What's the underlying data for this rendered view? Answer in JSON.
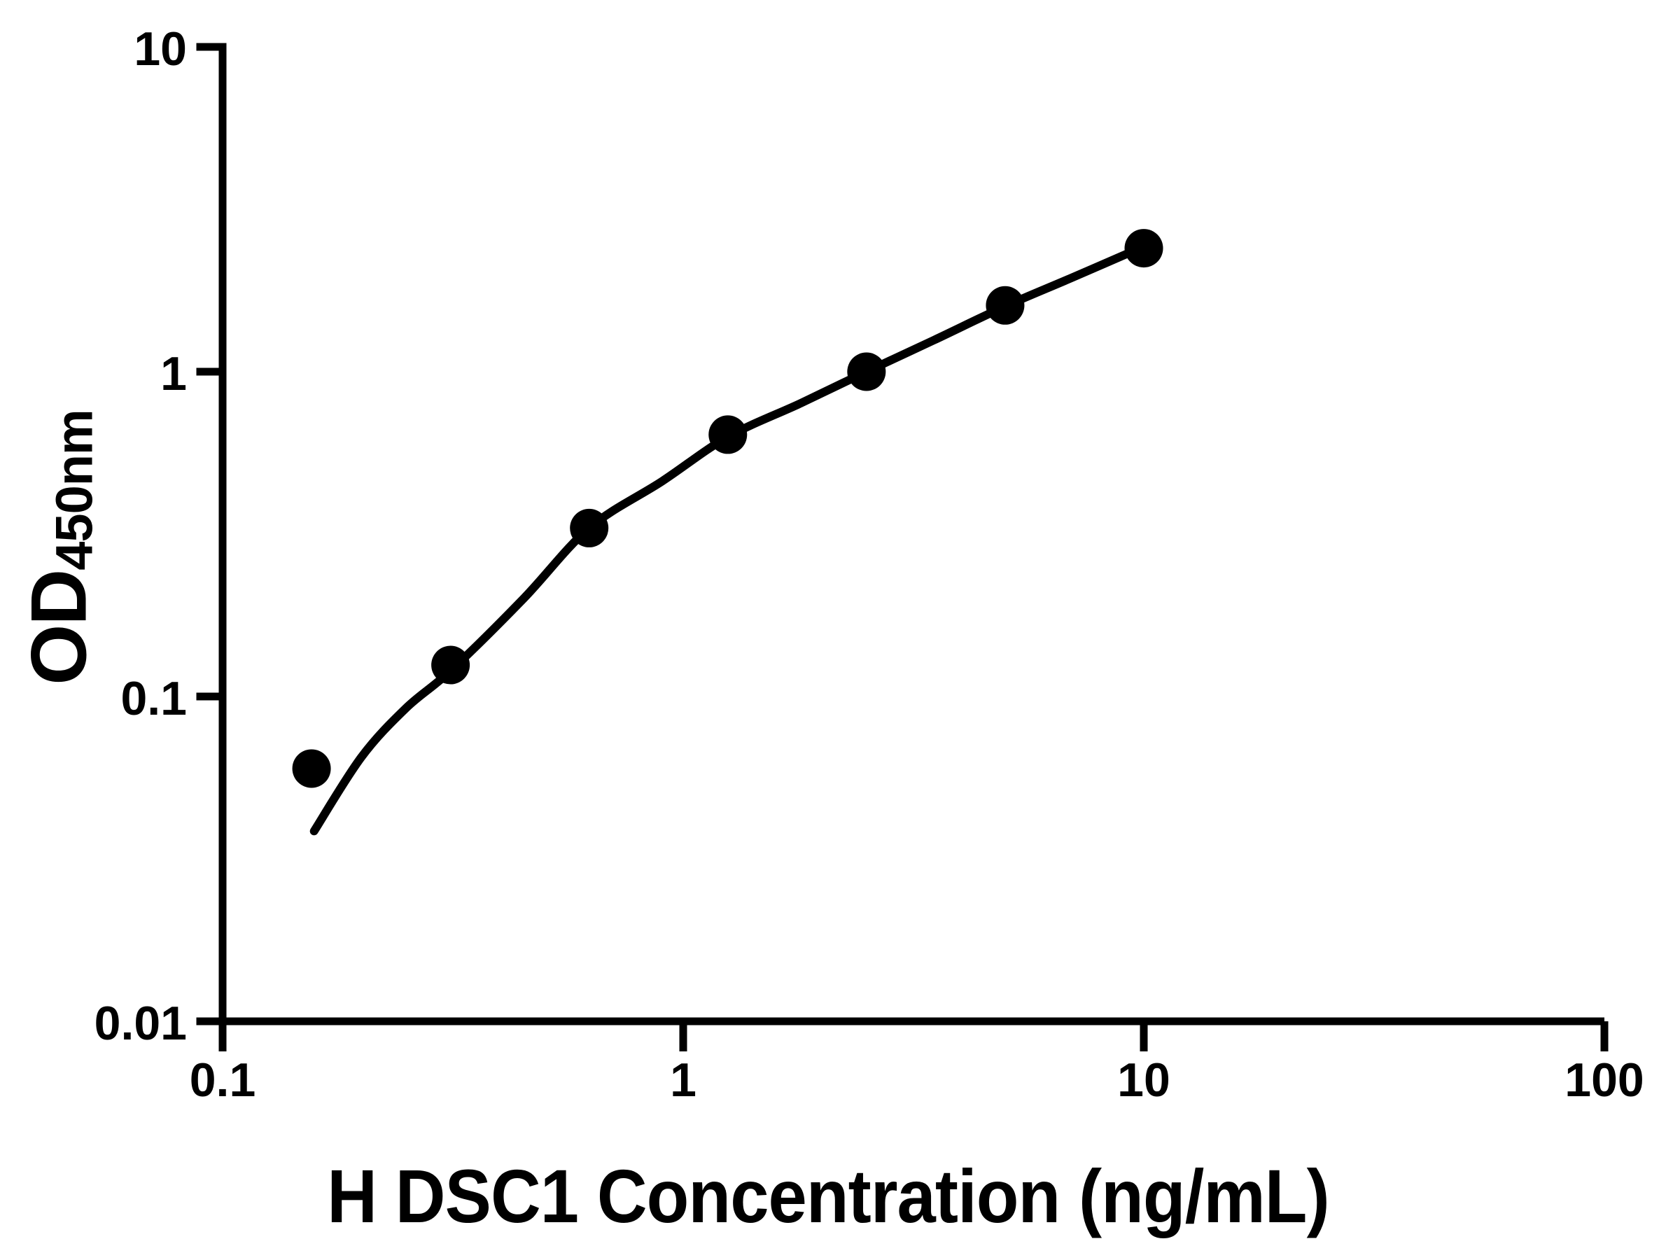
{
  "chart_data": {
    "type": "scatter",
    "subtype": "elisa-standard-curve",
    "log_x": true,
    "log_y": true,
    "grid": false,
    "legend": null,
    "xlabel": "H DSC1 Concentration (ng/mL)",
    "ylabel_main": "OD",
    "ylabel_sub": "450nm",
    "xlim": [
      0.1,
      100
    ],
    "ylim": [
      0.01,
      10
    ],
    "x_ticks": [
      {
        "value": 0.1,
        "label": "0.1"
      },
      {
        "value": 1,
        "label": "1"
      },
      {
        "value": 10,
        "label": "10"
      },
      {
        "value": 100,
        "label": "100"
      }
    ],
    "y_ticks": [
      {
        "value": 10,
        "label": "10"
      },
      {
        "value": 1,
        "label": "1"
      },
      {
        "value": 0.1,
        "label": "0.1"
      },
      {
        "value": 0.01,
        "label": "0.01"
      }
    ],
    "series": [
      {
        "name": "standard-points",
        "x": [
          0.156,
          0.3125,
          0.625,
          1.25,
          2.5,
          5,
          10
        ],
        "y": [
          0.06,
          0.125,
          0.33,
          0.64,
          1.0,
          1.6,
          2.4
        ]
      }
    ],
    "fit_curve_anchors": [
      [
        0.158,
        0.0385
      ],
      [
        0.2,
        0.065
      ],
      [
        0.25,
        0.092
      ],
      [
        0.3125,
        0.12
      ],
      [
        0.45,
        0.2
      ],
      [
        0.625,
        0.33
      ],
      [
        0.9,
        0.46
      ],
      [
        1.25,
        0.63
      ],
      [
        1.8,
        0.8
      ],
      [
        2.5,
        1.0
      ],
      [
        3.5,
        1.25
      ],
      [
        5,
        1.59
      ],
      [
        7,
        1.95
      ],
      [
        10,
        2.43
      ]
    ],
    "colors": {
      "points": "#000000",
      "curve": "#000000",
      "axis": "#000000",
      "background": "#ffffff"
    }
  }
}
